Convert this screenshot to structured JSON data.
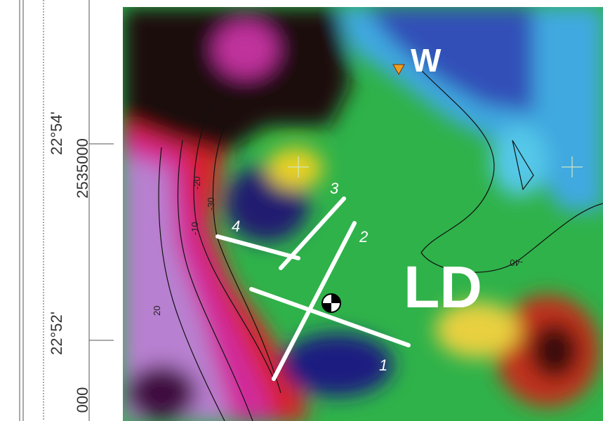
{
  "map": {
    "site_label": "W",
    "area_label": "LD",
    "profiles": [
      "1",
      "2",
      "3",
      "4"
    ],
    "latitudes": [
      "22°54'",
      "22°52'"
    ],
    "northings": [
      "2535000",
      "000"
    ],
    "contours": [
      "-20",
      "-30",
      "-10",
      "20",
      "-40"
    ]
  }
}
